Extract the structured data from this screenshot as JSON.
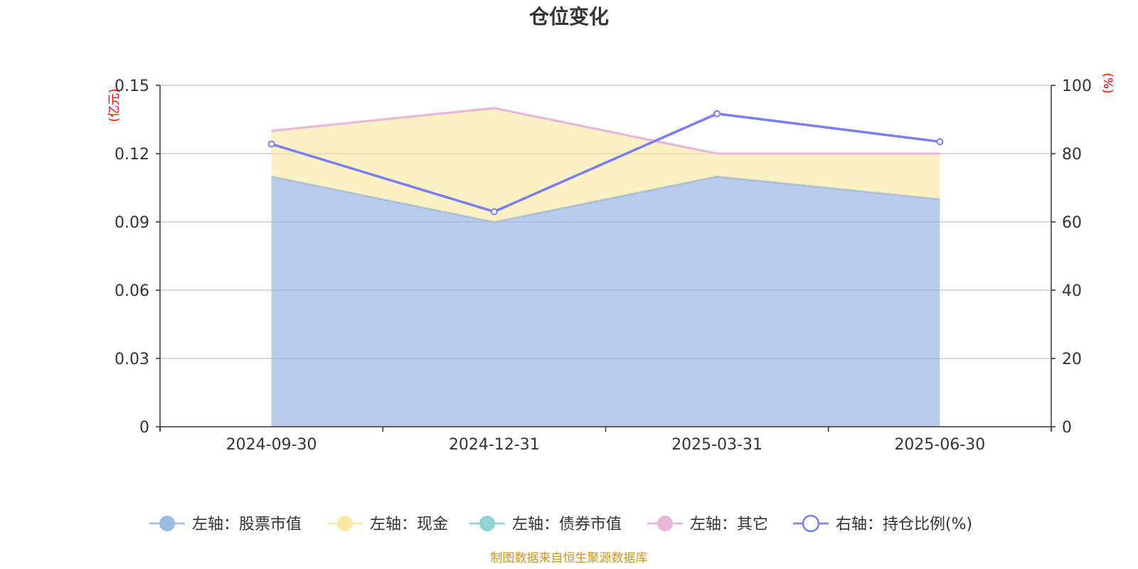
{
  "chart_data": {
    "type": "area",
    "title": "仓位变化",
    "categories": [
      "2024-09-30",
      "2024-12-31",
      "2025-03-31",
      "2025-06-30"
    ],
    "left_axis": {
      "unit": "(亿元)",
      "ylim": [
        0,
        0.15
      ],
      "ticks": [
        "0",
        "0.03",
        "0.06",
        "0.09",
        "0.12",
        "0.15"
      ]
    },
    "right_axis": {
      "unit": "(%)",
      "ylim": [
        0,
        100
      ],
      "ticks": [
        "0",
        "20",
        "40",
        "60",
        "80",
        "100"
      ]
    },
    "series": [
      {
        "name": "左轴：股票市值",
        "axis": "left",
        "kind": "stacked-area",
        "values": [
          0.11,
          0.09,
          0.11,
          0.1
        ],
        "color": "#9db9e0"
      },
      {
        "name": "左轴：现金",
        "axis": "left",
        "kind": "stacked-area",
        "values": [
          0.02,
          0.05,
          0.01,
          0.02
        ],
        "color": "#f9e9a6"
      },
      {
        "name": "左轴：债券市值",
        "axis": "left",
        "kind": "stacked-area",
        "values": [
          0,
          0,
          0,
          0
        ],
        "color": "#8fd3d3"
      },
      {
        "name": "左轴：其它",
        "axis": "left",
        "kind": "stacked-area",
        "values": [
          0,
          0,
          0,
          0
        ],
        "color": "#e9b6dc"
      },
      {
        "name": "右轴：持仓比例(%)",
        "axis": "right",
        "kind": "line",
        "values": [
          82.8,
          63.0,
          91.7,
          83.5
        ],
        "color": "#7b7ef0"
      }
    ],
    "grid": true,
    "legend_position": "bottom"
  },
  "source_text": "制图数据来自恒生聚源数据库",
  "colors": {
    "unit_label": "#ff0000",
    "source_text": "#c8952b",
    "axis": "#333333",
    "grid": "#cccccc"
  }
}
